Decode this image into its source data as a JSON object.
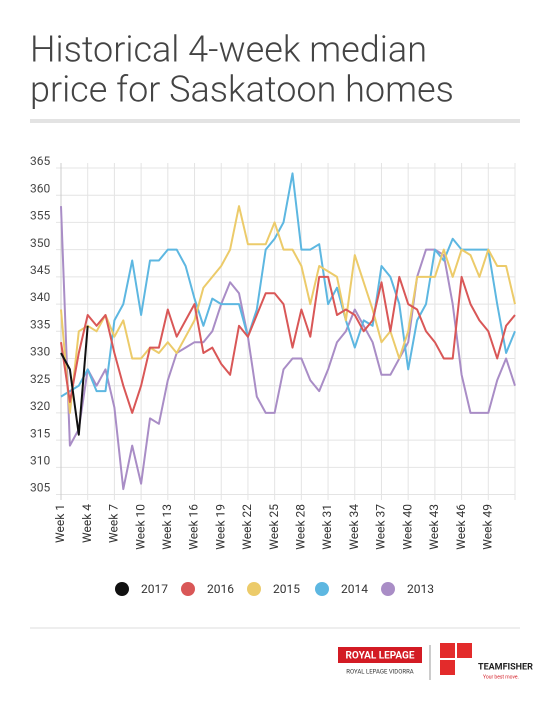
{
  "chart_data": {
    "type": "line",
    "title_lines": [
      "Historical 4-week median",
      "price for Saskatoon homes"
    ],
    "categories": [
      "Week 1",
      null,
      null,
      "Week 4",
      null,
      null,
      "Week 7",
      null,
      null,
      "Week 10",
      null,
      null,
      "Week 13",
      null,
      null,
      "Week 16",
      null,
      null,
      "Week 19",
      null,
      null,
      "Week 22",
      null,
      null,
      "Week 25",
      null,
      null,
      "Week 28",
      null,
      null,
      "Week 31",
      null,
      null,
      "Week 34",
      null,
      null,
      "Week 37",
      null,
      null,
      "Week 40",
      null,
      null,
      "Week 43",
      null,
      null,
      "Week 46",
      null,
      null,
      "Week 49",
      null,
      null,
      null
    ],
    "series": [
      {
        "name": "2017",
        "color": "#111111",
        "values": [
          331,
          328,
          316,
          336,
          null,
          null,
          null,
          null,
          null,
          null,
          null,
          null,
          null,
          null,
          null,
          null,
          null,
          null,
          null,
          null,
          null,
          null,
          null,
          null,
          null,
          null,
          null,
          null,
          null,
          null,
          null,
          null,
          null,
          null,
          null,
          null,
          null,
          null,
          null,
          null,
          null,
          null,
          null,
          null,
          null,
          null,
          null,
          null,
          null,
          null,
          null,
          null
        ]
      },
      {
        "name": "2016",
        "color": "#d95757",
        "values": [
          333,
          322,
          331,
          338,
          336,
          338,
          331,
          325,
          320,
          325,
          332,
          332,
          339,
          334,
          337,
          340,
          331,
          332,
          329,
          327,
          336,
          334,
          338,
          342,
          342,
          340,
          332,
          339,
          334,
          345,
          345,
          338,
          339,
          338,
          335,
          337,
          344,
          335,
          345,
          340,
          339,
          335,
          333,
          330,
          330,
          345,
          340,
          337,
          335,
          330,
          336,
          338
        ]
      },
      {
        "name": "2015",
        "color": "#eccb6a",
        "values": [
          339,
          320,
          335,
          336,
          335,
          338,
          334,
          337,
          330,
          330,
          332,
          331,
          333,
          331,
          334,
          337,
          343,
          345,
          347,
          350,
          358,
          351,
          351,
          351,
          355,
          350,
          350,
          347,
          340,
          347,
          346,
          345,
          337,
          349,
          344,
          339,
          333,
          335,
          330,
          335,
          345,
          345,
          345,
          350,
          345,
          350,
          349,
          345,
          350,
          347,
          347,
          340
        ]
      },
      {
        "name": "2014",
        "color": "#5db7e1",
        "values": [
          323,
          324,
          325,
          328,
          324,
          324,
          337,
          340,
          348,
          338,
          348,
          348,
          350,
          350,
          347,
          341,
          336,
          341,
          340,
          340,
          340,
          334,
          339,
          350,
          352,
          355,
          364,
          350,
          350,
          351,
          340,
          343,
          337,
          332,
          337,
          336,
          347,
          345,
          340,
          328,
          337,
          340,
          350,
          348,
          352,
          350,
          350,
          350,
          350,
          340,
          331,
          335
        ]
      },
      {
        "name": "2013",
        "color": "#a98dc6",
        "values": [
          358,
          314,
          317,
          328,
          325,
          328,
          321,
          306,
          314,
          307,
          319,
          318,
          326,
          331,
          332,
          333,
          333,
          335,
          340,
          344,
          342,
          334,
          323,
          320,
          320,
          328,
          330,
          330,
          326,
          324,
          328,
          333,
          335,
          339,
          336,
          333,
          327,
          327,
          330,
          333,
          345,
          350,
          350,
          349,
          340,
          327,
          320,
          320,
          320,
          326,
          330,
          325
        ]
      }
    ],
    "ylim": [
      304,
      365
    ],
    "yticks": [
      305,
      310,
      315,
      320,
      325,
      330,
      335,
      340,
      345,
      350,
      355,
      360,
      365
    ],
    "grid": true
  },
  "footer": {
    "brand1": "ROYAL LEPAGE",
    "brand1_sub": "ROYAL LEPAGE VIDORRA",
    "brand2": "TEAMFISHER",
    "brand2_sub": "Your best move."
  }
}
